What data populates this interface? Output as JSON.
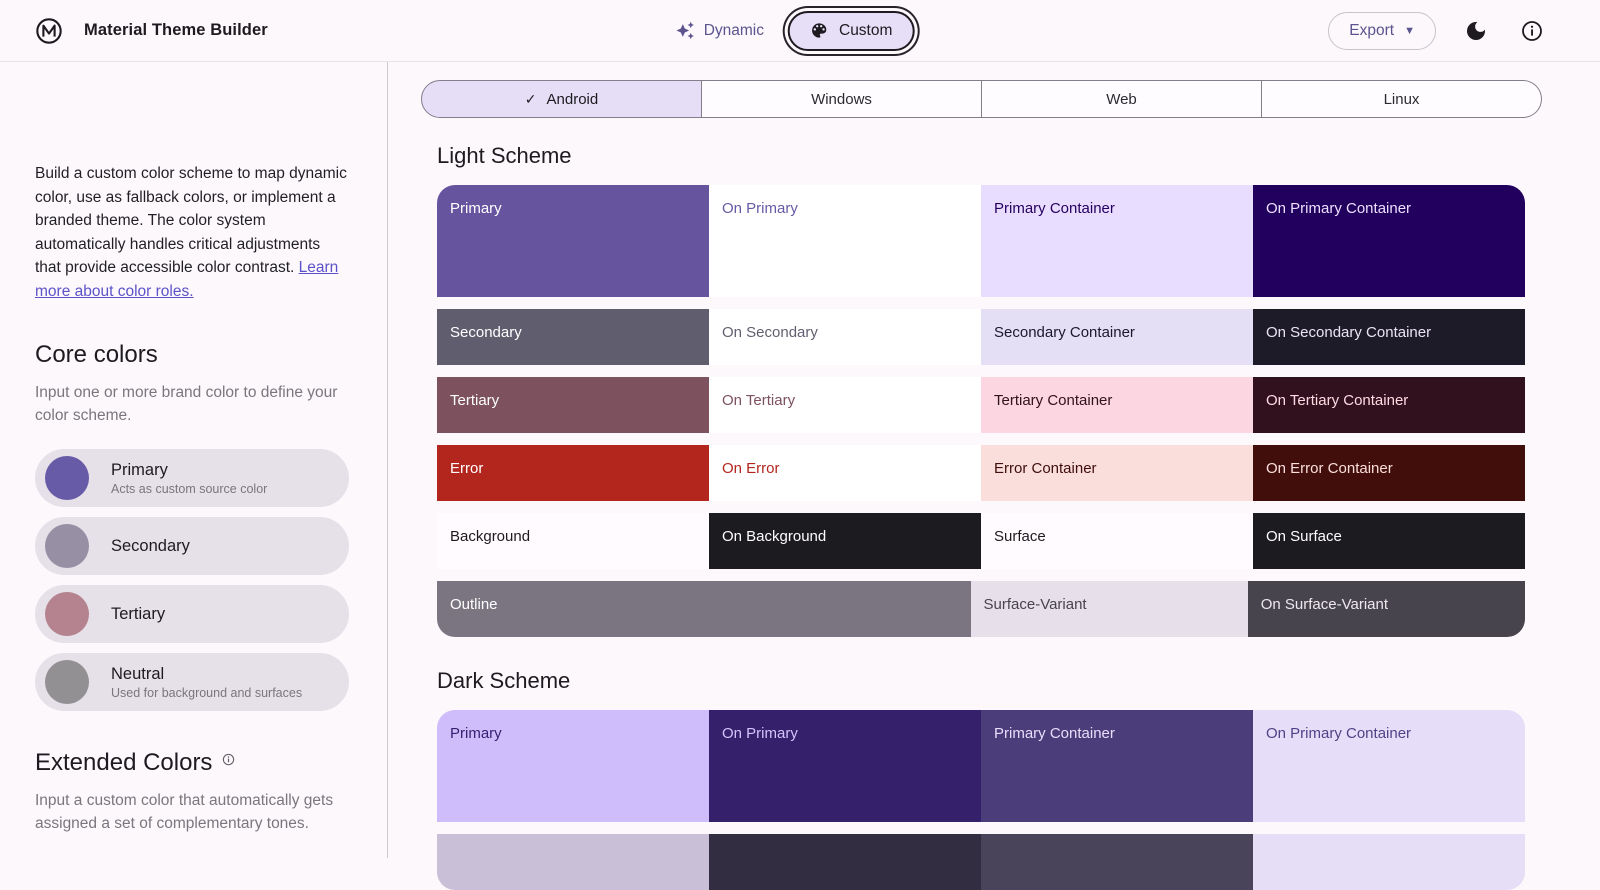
{
  "header": {
    "app_title": "Material Theme Builder",
    "dynamic_label": "Dynamic",
    "custom_label": "Custom",
    "export_label": "Export"
  },
  "icons": {
    "check": "✓",
    "caret": "▼"
  },
  "colors": {
    "accent_purple": "#5c548f",
    "link_purple": "#5c53c8",
    "page_background": "#fcf8fc",
    "selected_tab_background": "#e5def6"
  },
  "sidebar": {
    "intro_text": "Build a custom color scheme to map dynamic color, use as fallback colors, or implement a branded theme. The color system automatically handles critical adjustments that provide accessible color contrast. ",
    "intro_link": "Learn more about color roles.",
    "core_colors": {
      "title": "Core colors",
      "subtitle": "Input one or more brand color to define your color scheme.",
      "items": [
        {
          "label": "Primary",
          "description": "Acts as custom source color",
          "color": "#675aa6"
        },
        {
          "label": "Secondary",
          "description": "",
          "color": "#9790a5"
        },
        {
          "label": "Tertiary",
          "description": "",
          "color": "#b5838f"
        },
        {
          "label": "Neutral",
          "description": "Used for background and surfaces",
          "color": "#939094"
        }
      ]
    },
    "extended_colors": {
      "title": "Extended Colors",
      "subtitle": "Input a custom color that automatically gets assigned a set of complementary tones."
    }
  },
  "main": {
    "platform_tabs": [
      {
        "label": "Android",
        "selected": true
      },
      {
        "label": "Windows",
        "selected": false
      },
      {
        "label": "Web",
        "selected": false
      },
      {
        "label": "Linux",
        "selected": false
      }
    ],
    "light_scheme": {
      "title": "Light Scheme",
      "rows": [
        {
          "tall": true,
          "cells": [
            {
              "label": "Primary",
              "bg": "#67549f",
              "fg": "#ffffff"
            },
            {
              "label": "On Primary",
              "bg": "#ffffff",
              "fg": "#675aa5"
            },
            {
              "label": "Primary Container",
              "bg": "#e9ddff",
              "fg": "#25005f"
            },
            {
              "label": "On Primary Container",
              "bg": "#22005d",
              "fg": "#ece0ff"
            }
          ]
        },
        {
          "tall": false,
          "cells": [
            {
              "label": "Secondary",
              "bg": "#605d6e",
              "fg": "#ffffff"
            },
            {
              "label": "On Secondary",
              "bg": "#ffffff",
              "fg": "#625f70"
            },
            {
              "label": "Secondary Container",
              "bg": "#e4dff5",
              "fg": "#1d192b"
            },
            {
              "label": "On Secondary Container",
              "bg": "#1e1b29",
              "fg": "#eae3f5"
            }
          ]
        },
        {
          "tall": false,
          "cells": [
            {
              "label": "Tertiary",
              "bg": "#7d525e",
              "fg": "#ffffff"
            },
            {
              "label": "On Tertiary",
              "bg": "#ffffff",
              "fg": "#7d525e"
            },
            {
              "label": "Tertiary Container",
              "bg": "#fcd7e2",
              "fg": "#31111d"
            },
            {
              "label": "On Tertiary Container",
              "bg": "#31111d",
              "fg": "#ffd9e3"
            }
          ]
        },
        {
          "tall": false,
          "cells": [
            {
              "label": "Error",
              "bg": "#b3261e",
              "fg": "#ffffff"
            },
            {
              "label": "On Error",
              "bg": "#ffffff",
              "fg": "#b3261e"
            },
            {
              "label": "Error Container",
              "bg": "#f9dedc",
              "fg": "#410e0b"
            },
            {
              "label": "On Error Container",
              "bg": "#410e0b",
              "fg": "#f9dedc"
            }
          ]
        },
        {
          "tall": false,
          "cells": [
            {
              "label": "Background",
              "bg": "#fffbff",
              "fg": "#1c1b1f"
            },
            {
              "label": "On Background",
              "bg": "#1c1b1f",
              "fg": "#fffbff"
            },
            {
              "label": "Surface",
              "bg": "#fffbff",
              "fg": "#1c1b1f"
            },
            {
              "label": "On Surface",
              "bg": "#1c1b1f",
              "fg": "#fffbff"
            }
          ]
        },
        {
          "tall": false,
          "cells": [
            {
              "label": "Outline",
              "bg": "#7a7580",
              "fg": "#ffffff",
              "span": 2
            },
            {
              "label": "Surface-Variant",
              "bg": "#e7e0eb",
              "fg": "#48444d"
            },
            {
              "label": "On Surface-Variant",
              "bg": "#48444d",
              "fg": "#eee9ee"
            }
          ]
        }
      ]
    },
    "dark_scheme": {
      "title": "Dark Scheme",
      "rows": [
        {
          "tall": true,
          "cells": [
            {
              "label": "Primary",
              "bg": "#cebdfa",
              "fg": "#381e72"
            },
            {
              "label": "On Primary",
              "bg": "#35216b",
              "fg": "#d3c4fc"
            },
            {
              "label": "Primary Container",
              "bg": "#4a3d79",
              "fg": "#e8ddfb"
            },
            {
              "label": "On Primary Container",
              "bg": "#e6ddf8",
              "fg": "#4f4387"
            }
          ]
        },
        {
          "tall": false,
          "cells": [
            {
              "label": "",
              "bg": "#c9c0d8",
              "fg": "#332d41"
            },
            {
              "label": "",
              "bg": "#332d41",
              "fg": "#ccc2dc"
            },
            {
              "label": "",
              "bg": "#49445a",
              "fg": "#e8def8"
            },
            {
              "label": "",
              "bg": "#e6def6",
              "fg": "#332d41"
            }
          ]
        }
      ]
    }
  }
}
